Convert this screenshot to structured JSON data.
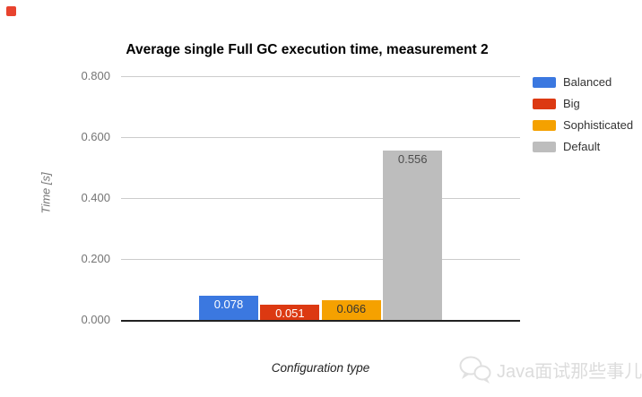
{
  "page": {
    "background": "#ffffff"
  },
  "top_left_marker": {
    "color": "#e8432e"
  },
  "chart_data": {
    "type": "bar",
    "title": "Average single Full GC execution time, measurement 2",
    "xlabel": "Configuration type",
    "ylabel": "Time [s]",
    "ylim": [
      0,
      0.8
    ],
    "grid": true,
    "legend_position": "right",
    "yticks": [
      {
        "value": 0.8,
        "label": "0.800"
      },
      {
        "value": 0.6,
        "label": "0.600"
      },
      {
        "value": 0.4,
        "label": "0.400"
      },
      {
        "value": 0.2,
        "label": "0.200"
      },
      {
        "value": 0.0,
        "label": "0.000"
      }
    ],
    "categories": [
      "Configuration type"
    ],
    "series": [
      {
        "name": "Balanced",
        "value": 0.078,
        "label": "0.078",
        "color": "#3b78e0",
        "label_color": "#ffffff"
      },
      {
        "name": "Big",
        "value": 0.051,
        "label": "0.051",
        "color": "#dc3912",
        "label_color": "#ffffff"
      },
      {
        "name": "Sophisticated",
        "value": 0.066,
        "label": "0.066",
        "color": "#f5a100",
        "label_color": "#333333"
      },
      {
        "name": "Default",
        "value": 0.556,
        "label": "0.556",
        "color": "#bdbdbd",
        "label_color": "#4d4d4d"
      }
    ]
  },
  "watermark": {
    "text": "Java面试那些事儿",
    "icon": "wechat-icon"
  }
}
